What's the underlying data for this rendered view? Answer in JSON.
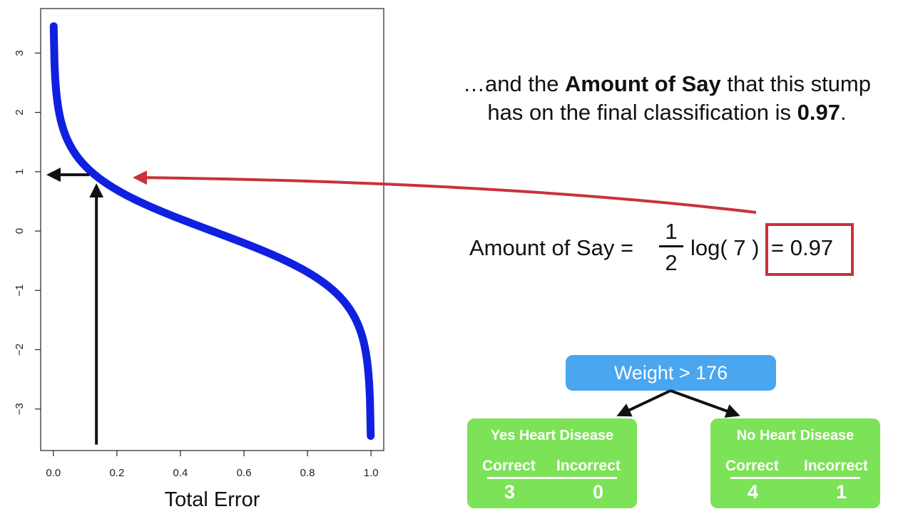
{
  "caption": {
    "prefix": "…and the ",
    "bold": "Amount of Say",
    "middle": " that this stump has on the final classification is ",
    "value": "0.97",
    "suffix": "."
  },
  "formula": {
    "lhs": "Amount of Say =",
    "numerator": "1",
    "denominator": "2",
    "log_expr": "log( 7 )",
    "result": "= 0.97"
  },
  "colors": {
    "curve": "#1020e0",
    "highlight_arrow": "#c8323a",
    "stump_fill": "#4aa6ef",
    "leaf_fill": "#7ce257"
  },
  "stump": {
    "label": "Weight > 176"
  },
  "leaves": [
    {
      "title": "Yes Heart Disease",
      "correct_label": "Correct",
      "incorrect_label": "Incorrect",
      "correct": "3",
      "incorrect": "0"
    },
    {
      "title": "No Heart Disease",
      "correct_label": "Correct",
      "incorrect_label": "Incorrect",
      "correct": "4",
      "incorrect": "1"
    }
  ],
  "chart_data": {
    "type": "line",
    "title": "",
    "xlabel": "Total Error",
    "ylabel": "",
    "xlim": [
      -0.04,
      1.04
    ],
    "ylim": [
      -3.7,
      3.75
    ],
    "xticks": [
      "0.0",
      "0.2",
      "0.4",
      "0.6",
      "0.8",
      "1.0"
    ],
    "yticks": [
      "3",
      "2",
      "1",
      "0",
      "−1",
      "−2",
      "−3"
    ],
    "function": "0.5 * ln((1 - x) / x)",
    "x_range": [
      0.001,
      0.999
    ],
    "highlight": {
      "x": 0.14,
      "y": 0.9,
      "vertical_arrow_from_y": -3.6
    }
  }
}
